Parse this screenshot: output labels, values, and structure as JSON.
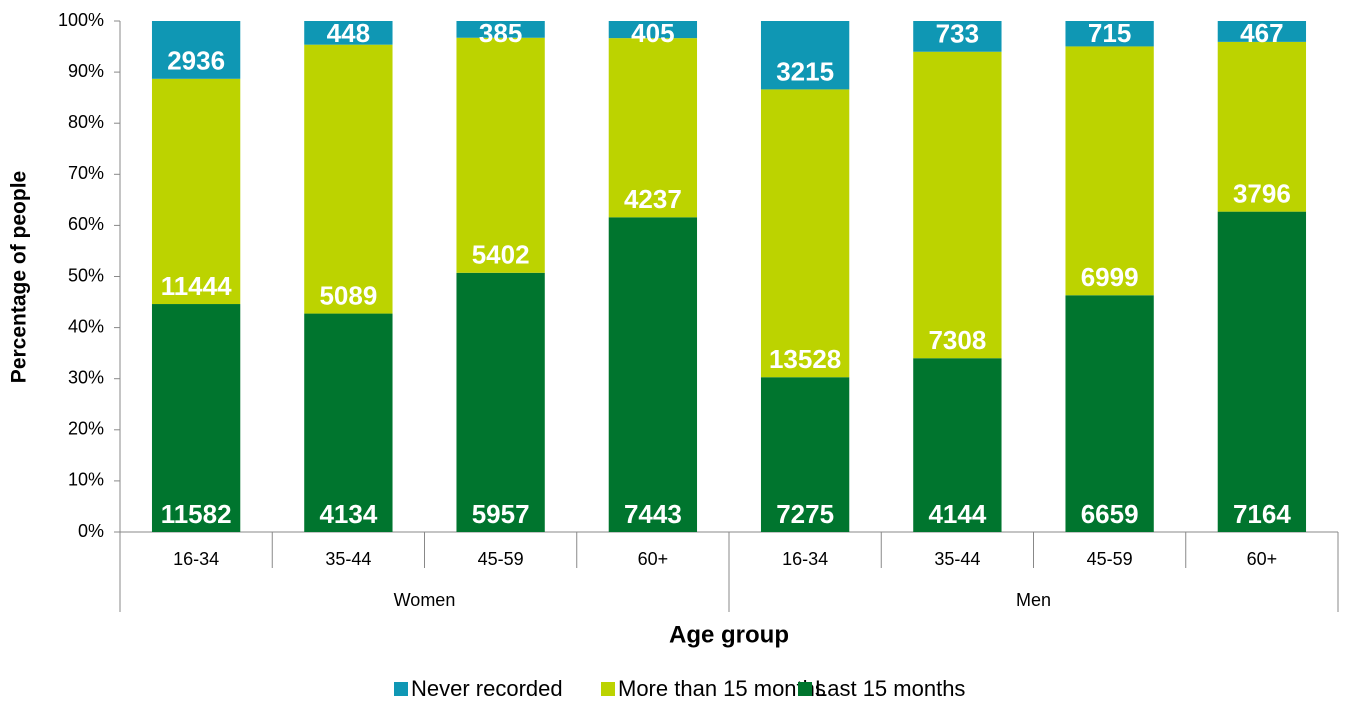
{
  "chart_data": {
    "type": "bar",
    "stacked": "percent",
    "x_label": "Age group",
    "y_label": "Percentage of people",
    "categories": [
      "16-34",
      "35-44",
      "45-59",
      "60+",
      "16-34",
      "35-44",
      "45-59",
      "60+"
    ],
    "groups": [
      "Women",
      "Men"
    ],
    "series": [
      {
        "name": "Never recorded",
        "color": "#0f97b4",
        "values": [
          2936,
          448,
          385,
          405,
          3215,
          733,
          715,
          467
        ]
      },
      {
        "name": "More than 15 months",
        "color": "#bcd300",
        "values": [
          11444,
          5089,
          5402,
          4237,
          13528,
          7308,
          6999,
          3796
        ]
      },
      {
        "name": "Last 15 months",
        "color": "#00752e",
        "values": [
          11582,
          4134,
          5957,
          7443,
          7275,
          4144,
          6659,
          7164
        ]
      }
    ],
    "ylim": [
      0,
      100
    ],
    "yticks": [
      {
        "value": 0,
        "label": "0%"
      },
      {
        "value": 10,
        "label": "10%"
      },
      {
        "value": 20,
        "label": "20%"
      },
      {
        "value": 30,
        "label": "30%"
      },
      {
        "value": 40,
        "label": "40%"
      },
      {
        "value": 50,
        "label": "50%"
      },
      {
        "value": 60,
        "label": "60%"
      },
      {
        "value": 70,
        "label": "70%"
      },
      {
        "value": 80,
        "label": "80%"
      },
      {
        "value": 90,
        "label": "90%"
      },
      {
        "value": 100,
        "label": "100%"
      }
    ],
    "legend": "bottom"
  }
}
